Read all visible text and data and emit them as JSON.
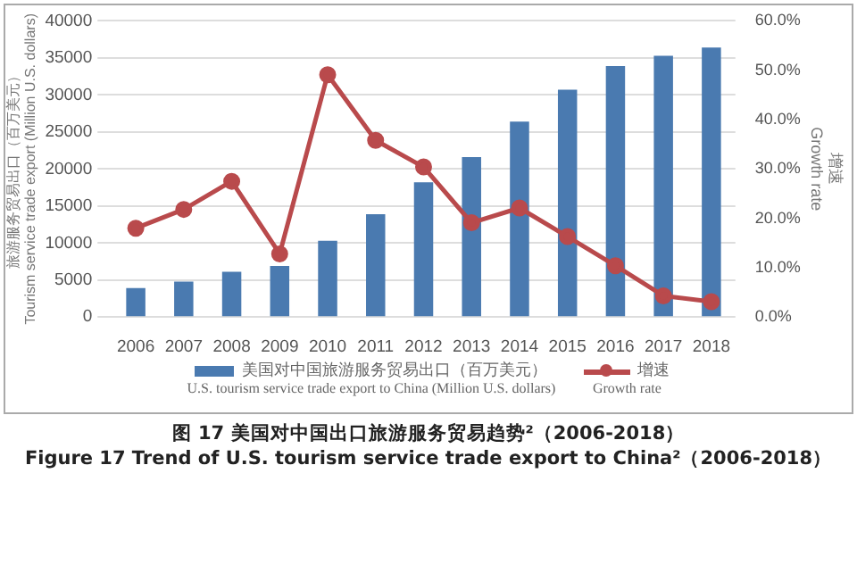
{
  "chart_data": {
    "type": "bar",
    "title": "图 17 美国对中国出口旅游服务贸易趋势²（2006-2018）",
    "subtitle": "Figure 17 Trend of U.S. tourism service trade export to China²（2006-2018）",
    "ylabel": "旅游服务贸易出口（百万美元）\nTourism service trade export (Million U.S. dollars)",
    "y2label": "增速\nGrowth rate",
    "categories": [
      "2006",
      "2007",
      "2008",
      "2009",
      "2010",
      "2011",
      "2012",
      "2013",
      "2014",
      "2015",
      "2016",
      "2017",
      "2018"
    ],
    "series": [
      {
        "name": "美国对中国旅游服务贸易出口（百万美元）\nU.S. tourism service trade export to China (Million U.S. dollars)",
        "color": "#4a7ab0",
        "values": [
          3900,
          4800,
          6100,
          6900,
          10300,
          13900,
          18200,
          21600,
          26400,
          30700,
          33900,
          35300,
          36400
        ]
      },
      {
        "name": "增速\nGrowth rate",
        "type": "line",
        "axis": "y2",
        "color": "#b94a4c",
        "values": [
          18.0,
          21.8,
          27.5,
          12.8,
          49.1,
          35.8,
          30.4,
          19.1,
          22.1,
          16.3,
          10.4,
          4.3,
          3.1
        ]
      }
    ],
    "ylim": [
      0,
      40000
    ],
    "yticks": [
      0,
      5000,
      10000,
      15000,
      20000,
      25000,
      30000,
      35000,
      40000
    ],
    "y2lim": [
      0,
      60
    ],
    "y2ticks": [
      {
        "value": 0,
        "label": "0.0%"
      },
      {
        "value": 10,
        "label": "10.0%"
      },
      {
        "value": 20,
        "label": "20.0%"
      },
      {
        "value": 30,
        "label": "30.0%"
      },
      {
        "value": 40,
        "label": "40.0%"
      },
      {
        "value": 50,
        "label": "50.0%"
      },
      {
        "value": 60,
        "label": "60.0%"
      }
    ],
    "grid": "y",
    "legend": "bottom",
    "marker": "circle",
    "line_style": "solid"
  }
}
